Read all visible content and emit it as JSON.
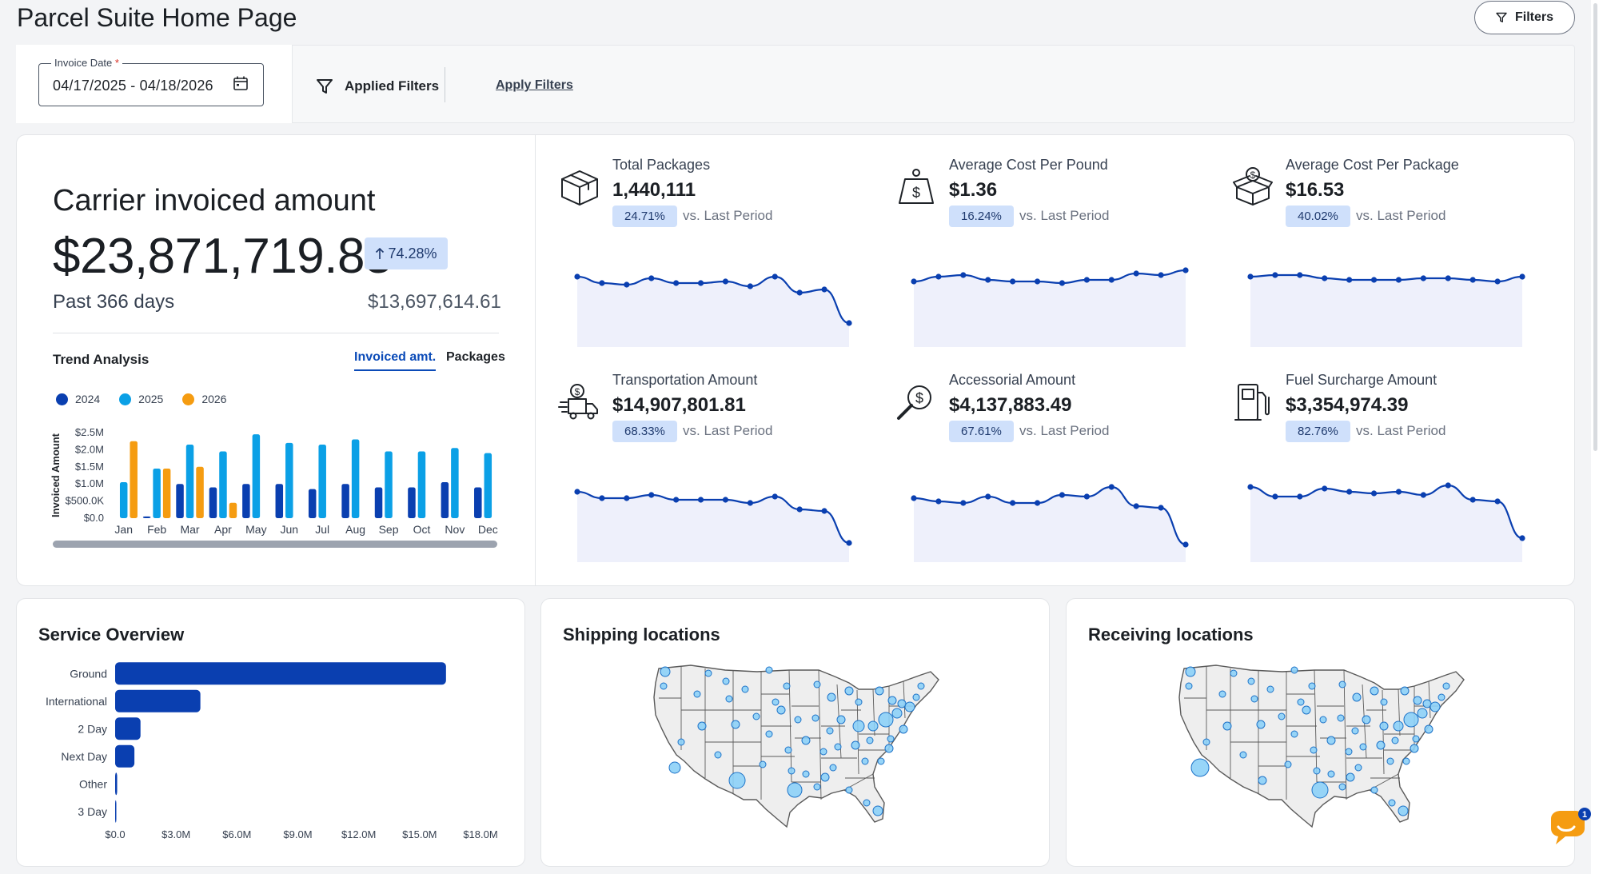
{
  "page": {
    "title": "Parcel Suite Home Page"
  },
  "header": {
    "filters_button": "Filters"
  },
  "filter_bar": {
    "date_label": "Invoice Date",
    "date_required_mark": "*",
    "date_value": "04/17/2025 - 04/18/2026",
    "applied_filters_label": "Applied Filters",
    "apply_filters_link": "Apply Filters"
  },
  "carrier_summary": {
    "title": "Carrier invoiced amount",
    "amount": "$23,871,719.83",
    "change_badge": "74.28%",
    "period": "Past 366 days",
    "previous_amount": "$13,697,614.61"
  },
  "trend_analysis": {
    "title": "Trend Analysis",
    "tabs": [
      "Invoiced amt.",
      "Packages"
    ],
    "active_tab": "Invoiced amt.",
    "colors": {
      "2024": "#0a3fb0",
      "2025": "#0ba0e6",
      "2026": "#f59c11"
    },
    "chart_data": {
      "type": "bar",
      "categories": [
        "Jan",
        "Feb",
        "Mar",
        "Apr",
        "May",
        "Jun",
        "Jul",
        "Aug",
        "Sep",
        "Oct",
        "Nov",
        "Dec"
      ],
      "series": [
        {
          "name": "2024",
          "values": [
            0,
            0.05,
            1.0,
            0.9,
            1.0,
            1.0,
            0.85,
            1.0,
            0.9,
            0.9,
            1.05,
            0.9
          ]
        },
        {
          "name": "2025",
          "values": [
            1.05,
            1.45,
            2.15,
            1.95,
            2.45,
            2.2,
            2.15,
            2.3,
            1.95,
            1.95,
            2.05,
            1.9
          ]
        },
        {
          "name": "2026",
          "values": [
            2.25,
            1.45,
            1.5,
            0.45,
            0,
            0,
            0,
            0,
            0,
            0,
            0,
            0
          ]
        }
      ],
      "ylabel": "Invoiced Amount",
      "yticks": [
        "$0.0",
        "$500.0K",
        "$1.0M",
        "$1.5M",
        "$2.0M",
        "$2.5M"
      ],
      "ylim": [
        0,
        2.5
      ],
      "legend": "top-left"
    }
  },
  "kpis": [
    {
      "label": "Total Packages",
      "value": "1,440,111",
      "change": "24.71%",
      "vs": "vs. Last Period",
      "icon": "package-icon",
      "chart_data": {
        "type": "line",
        "x": [
          1,
          2,
          3,
          4,
          5,
          6,
          7,
          8,
          9,
          10,
          11,
          12
        ],
        "values": [
          76,
          72,
          71,
          75,
          72,
          72,
          73,
          70,
          76,
          66,
          68,
          47
        ],
        "ylim": [
          40,
          90
        ]
      }
    },
    {
      "label": "Average Cost Per Pound",
      "value": "$1.36",
      "change": "16.24%",
      "vs": "vs. Last Period",
      "icon": "weight-dollar-icon",
      "chart_data": {
        "type": "line",
        "x": [
          1,
          2,
          3,
          4,
          5,
          6,
          7,
          8,
          9,
          10,
          11,
          12
        ],
        "values": [
          73,
          76,
          77,
          74,
          73,
          73,
          72,
          74,
          74,
          78,
          77,
          80
        ],
        "ylim": [
          40,
          90
        ]
      }
    },
    {
      "label": "Average Cost Per Package",
      "value": "$16.53",
      "change": "40.02%",
      "vs": "vs. Last Period",
      "icon": "box-dollar-icon",
      "chart_data": {
        "type": "line",
        "x": [
          1,
          2,
          3,
          4,
          5,
          6,
          7,
          8,
          9,
          10,
          11,
          12
        ],
        "values": [
          76,
          77,
          77,
          75,
          74,
          74,
          74,
          75,
          75,
          74,
          73,
          76
        ],
        "ylim": [
          40,
          90
        ]
      }
    },
    {
      "label": "Transportation Amount",
      "value": "$14,907,801.81",
      "change": "68.33%",
      "vs": "vs. Last Period",
      "icon": "delivery-truck-icon",
      "chart_data": {
        "type": "line",
        "x": [
          1,
          2,
          3,
          4,
          5,
          6,
          7,
          8,
          9,
          10,
          11,
          12
        ],
        "values": [
          76,
          72,
          72,
          74,
          71,
          71,
          71,
          69,
          73,
          65,
          64,
          44
        ],
        "ylim": [
          40,
          90
        ]
      }
    },
    {
      "label": "Accessorial Amount",
      "value": "$4,137,883.49",
      "change": "67.61%",
      "vs": "vs. Last Period",
      "icon": "magnifier-dollar-icon",
      "chart_data": {
        "type": "line",
        "x": [
          1,
          2,
          3,
          4,
          5,
          6,
          7,
          8,
          9,
          10,
          11,
          12
        ],
        "values": [
          72,
          70,
          69,
          73,
          69,
          69,
          74,
          73,
          79,
          67,
          66,
          43
        ],
        "ylim": [
          40,
          90
        ]
      }
    },
    {
      "label": "Fuel Surcharge Amount",
      "value": "$3,354,974.39",
      "change": "82.76%",
      "vs": "vs. Last Period",
      "icon": "fuel-pump-icon",
      "chart_data": {
        "type": "line",
        "x": [
          1,
          2,
          3,
          4,
          5,
          6,
          7,
          8,
          9,
          10,
          11,
          12
        ],
        "values": [
          79,
          73,
          73,
          78,
          76,
          75,
          76,
          74,
          80,
          71,
          70,
          47
        ],
        "ylim": [
          40,
          90
        ]
      }
    }
  ],
  "service_overview": {
    "title": "Service Overview",
    "bar_color": "#0a3fb0",
    "chart_data": {
      "type": "bar",
      "orientation": "horizontal",
      "categories": [
        "Ground",
        "International",
        "2 Day",
        "Next Day",
        "Other",
        "3 Day"
      ],
      "values": [
        16.3,
        4.2,
        1.25,
        0.95,
        0.1,
        0.03
      ],
      "xticks": [
        "$0.0",
        "$3.0M",
        "$6.0M",
        "$9.0M",
        "$12.0M",
        "$15.0M",
        "$18.0M"
      ],
      "xlim": [
        0,
        18
      ]
    }
  },
  "maps": [
    {
      "title": "Shipping locations"
    },
    {
      "title": "Receiving locations"
    }
  ],
  "chat": {
    "badge_count": "1"
  }
}
